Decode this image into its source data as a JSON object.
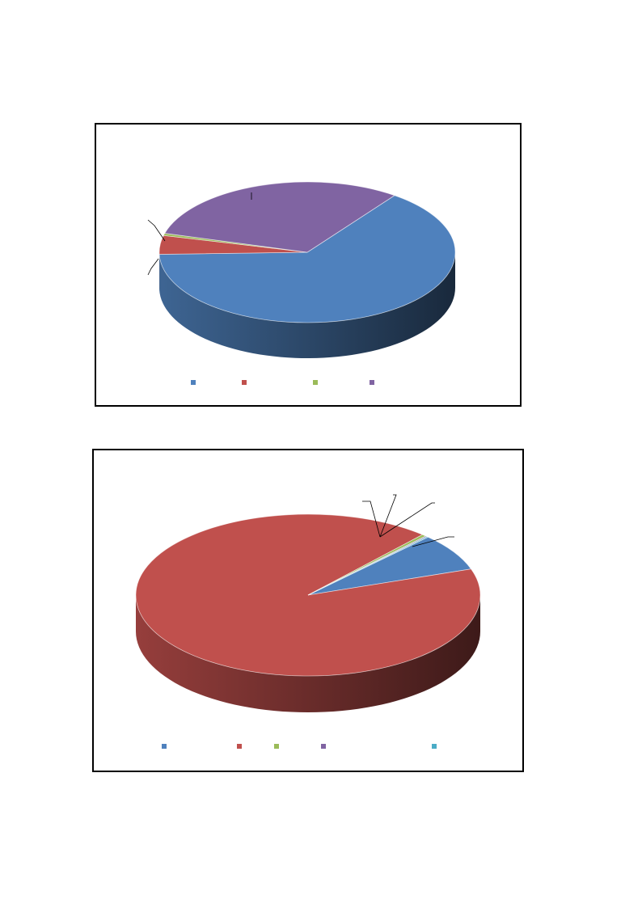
{
  "colors": {
    "blue": "#4F81BD",
    "red": "#C0504D",
    "green": "#9BBB59",
    "purple": "#8064A2",
    "cyan": "#4BACC6",
    "border": "#000000"
  },
  "chart_data": [
    {
      "type": "pie",
      "style": "3d",
      "title": "",
      "slices": [
        {
          "label": "",
          "value": 64.5,
          "color": "#4F81BD"
        },
        {
          "label": "",
          "value": 4.3,
          "color": "#C0504D"
        },
        {
          "label": "",
          "value": 0.5,
          "color": "#9BBB59"
        },
        {
          "label": "",
          "value": 30.7,
          "color": "#8064A2"
        }
      ],
      "legend": {
        "position": "bottom",
        "entries": [
          {
            "name": "",
            "color": "#4F81BD"
          },
          {
            "name": "",
            "color": "#C0504D"
          },
          {
            "name": "",
            "color": "#9BBB59"
          },
          {
            "name": "",
            "color": "#8064A2"
          }
        ]
      },
      "data_labels": [
        "",
        "",
        "",
        ""
      ]
    },
    {
      "type": "pie",
      "style": "3d",
      "title": "",
      "slices": [
        {
          "label": "",
          "value": 7.5,
          "color": "#4F81BD"
        },
        {
          "label": "",
          "value": 91.8,
          "color": "#C0504D"
        },
        {
          "label": "",
          "value": 0.4,
          "color": "#9BBB59"
        },
        {
          "label": "",
          "value": 0.15,
          "color": "#8064A2"
        },
        {
          "label": "",
          "value": 0.15,
          "color": "#4BACC6"
        }
      ],
      "legend": {
        "position": "bottom",
        "entries": [
          {
            "name": "",
            "color": "#4F81BD"
          },
          {
            "name": "",
            "color": "#C0504D"
          },
          {
            "name": "",
            "color": "#9BBB59"
          },
          {
            "name": "",
            "color": "#8064A2"
          },
          {
            "name": "",
            "color": "#4BACC6"
          }
        ]
      },
      "data_labels": [
        "",
        "",
        "",
        "",
        ""
      ]
    }
  ]
}
